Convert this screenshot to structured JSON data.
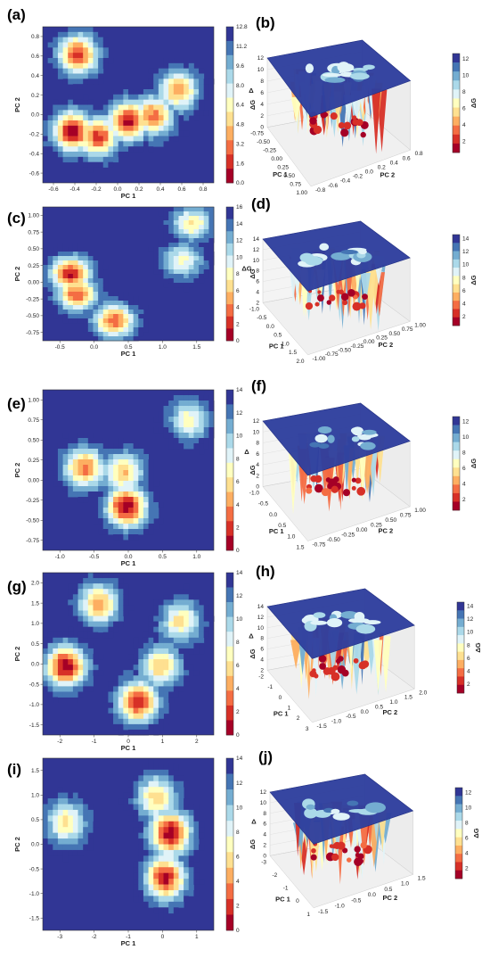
{
  "colors": {
    "scale": [
      "#a50026",
      "#d73027",
      "#f46d43",
      "#fdae61",
      "#fee090",
      "#ffffbf",
      "#e0f3f8",
      "#abd9e9",
      "#74add1",
      "#4575b4",
      "#313695"
    ],
    "plane": "#2f3f9e",
    "grid": "#dddddd"
  },
  "chart_data": [
    {
      "id": "a",
      "panel_label": "(a)",
      "type": "heatmap",
      "xlabel": "PC 1",
      "ylabel": "PC 2",
      "colorbar_label": "ΔG",
      "xticks": [
        "-0.6",
        "-0.4",
        "-0.2",
        "0.0",
        "0.2",
        "0.4",
        "0.6",
        "0.8"
      ],
      "yticks": [
        "0.8",
        "0.6",
        "0.4",
        "0.2",
        "0.0",
        "-0.2",
        "-0.4",
        "-0.6"
      ],
      "cbar_ticks": [
        "12.8",
        "11.2",
        "9.6",
        "8.0",
        "6.4",
        "4.8",
        "3.2",
        "1.6",
        "0.0"
      ],
      "xlim": [
        -0.75,
        0.95
      ],
      "ylim": [
        -0.7,
        0.82
      ],
      "vmax": 12.8,
      "basins": [
        {
          "x": -0.4,
          "y": 0.55,
          "depth": 11
        },
        {
          "x": -0.45,
          "y": -0.2,
          "depth": 12.5
        },
        {
          "x": -0.2,
          "y": -0.25,
          "depth": 11
        },
        {
          "x": 0.1,
          "y": -0.1,
          "depth": 12
        },
        {
          "x": 0.35,
          "y": -0.05,
          "depth": 10
        },
        {
          "x": 0.6,
          "y": 0.2,
          "depth": 9
        }
      ]
    },
    {
      "id": "b",
      "panel_label": "(b)",
      "type": "surface",
      "xlabel": "PC 1",
      "ylabel": "PC 2",
      "zlabel": "Δ",
      "colorbar_label": "ΔG",
      "xticks": [
        "-0.75",
        "-0.50",
        "-0.25",
        "0.00",
        "0.25",
        "0.50",
        "0.75",
        "1.00"
      ],
      "yticks": [
        "0.8",
        "0.6",
        "0.4",
        "0.2",
        "0.0",
        "-0.2",
        "-0.4",
        "-0.6",
        "-0.8"
      ],
      "zticks": [
        "12",
        "10",
        "8",
        "6",
        "4",
        "2",
        "0"
      ],
      "cbar_ticks": [
        "12",
        "10",
        "8",
        "6",
        "4",
        "2"
      ]
    },
    {
      "id": "c",
      "panel_label": "(c)",
      "type": "heatmap",
      "xlabel": "PC 1",
      "ylabel": "PC 2",
      "colorbar_label": "ΔG",
      "xticks": [
        "-0.5",
        "0.0",
        "0.5",
        "1.0",
        "1.5"
      ],
      "yticks": [
        "1.00",
        "0.75",
        "0.50",
        "0.25",
        "0.00",
        "-0.25",
        "-0.50",
        "-0.75"
      ],
      "cbar_ticks": [
        "16",
        "14",
        "12",
        "10",
        "8",
        "6",
        "4",
        "2",
        "0"
      ],
      "xlim": [
        -0.85,
        1.9
      ],
      "ylim": [
        -0.9,
        1.1
      ],
      "vmax": 16,
      "basins": [
        {
          "x": -0.4,
          "y": 0.1,
          "depth": 15
        },
        {
          "x": -0.3,
          "y": -0.2,
          "depth": 13
        },
        {
          "x": 0.3,
          "y": -0.6,
          "depth": 13
        },
        {
          "x": 1.55,
          "y": 0.85,
          "depth": 9
        },
        {
          "x": 1.4,
          "y": 0.3,
          "depth": 8
        }
      ]
    },
    {
      "id": "d",
      "panel_label": "(d)",
      "type": "surface",
      "xlabel": "PC 1",
      "ylabel": "PC 2",
      "zlabel": "ΔG",
      "colorbar_label": "ΔG",
      "xticks": [
        "-1.0",
        "-0.5",
        "0.0",
        "0.5",
        "1.0",
        "1.5",
        "2.0"
      ],
      "yticks": [
        "1.00",
        "0.75",
        "0.50",
        "0.25",
        "0.00",
        "-0.25",
        "-0.50",
        "-0.75",
        "-1.00"
      ],
      "zticks": [
        "14",
        "12",
        "10",
        "8",
        "6",
        "4",
        "2"
      ],
      "cbar_ticks": [
        "14",
        "12",
        "10",
        "8",
        "6",
        "4",
        "2"
      ]
    },
    {
      "id": "e",
      "panel_label": "(e)",
      "type": "heatmap",
      "xlabel": "PC 1",
      "ylabel": "PC 2",
      "colorbar_label": "ΔG",
      "xticks": [
        "-1.0",
        "-0.5",
        "0.0",
        "0.5",
        "1.0"
      ],
      "yticks": [
        "1.00",
        "0.75",
        "0.50",
        "0.25",
        "0.00",
        "-0.25",
        "-0.50",
        "-0.75"
      ],
      "cbar_ticks": [
        "14",
        "12",
        "10",
        "8",
        "6",
        "4",
        "2",
        "0"
      ],
      "xlim": [
        -1.15,
        1.3
      ],
      "ylim": [
        -0.8,
        1.05
      ],
      "vmax": 14,
      "basins": [
        {
          "x": -0.55,
          "y": 0.15,
          "depth": 11
        },
        {
          "x": 0.05,
          "y": -0.3,
          "depth": 14
        },
        {
          "x": 0.0,
          "y": 0.1,
          "depth": 9
        },
        {
          "x": 0.95,
          "y": 0.7,
          "depth": 7
        }
      ]
    },
    {
      "id": "f",
      "panel_label": "(f)",
      "type": "surface",
      "xlabel": "PC 1",
      "ylabel": "PC 2",
      "zlabel": "Δ",
      "colorbar_label": "ΔG",
      "xticks": [
        "-1.0",
        "-0.5",
        "0.0",
        "0.5",
        "1.0",
        "1.5"
      ],
      "yticks": [
        "1.00",
        "0.75",
        "0.50",
        "0.25",
        "0.00",
        "-0.25",
        "-0.50",
        "-0.75"
      ],
      "zticks": [
        "12",
        "10",
        "8",
        "6",
        "4",
        "2",
        "0"
      ],
      "cbar_ticks": [
        "12",
        "10",
        "8",
        "6",
        "4",
        "2"
      ]
    },
    {
      "id": "g",
      "panel_label": "(g)",
      "type": "heatmap",
      "xlabel": "PC 1",
      "ylabel": "PC 2",
      "colorbar_label": "ΔG",
      "xticks": [
        "-2",
        "-1",
        "0",
        "1",
        "2"
      ],
      "yticks": [
        "2.0",
        "1.5",
        "1.0",
        "0.5",
        "0.0",
        "-0.5",
        "-1.0",
        "-1.5"
      ],
      "cbar_ticks": [
        "14",
        "12",
        "10",
        "8",
        "6",
        "4",
        "2",
        "0"
      ],
      "xlim": [
        -2.4,
        2.8
      ],
      "ylim": [
        -1.55,
        2.1
      ],
      "vmax": 14,
      "basins": [
        {
          "x": -1.7,
          "y": 0.0,
          "depth": 14
        },
        {
          "x": -0.7,
          "y": 1.4,
          "depth": 10
        },
        {
          "x": 0.5,
          "y": -0.8,
          "depth": 13
        },
        {
          "x": 1.2,
          "y": 0.0,
          "depth": 9
        },
        {
          "x": 1.8,
          "y": 1.0,
          "depth": 8
        }
      ]
    },
    {
      "id": "h",
      "panel_label": "(h)",
      "type": "surface",
      "xlabel": "PC 1",
      "ylabel": "PC 2",
      "zlabel": "Δ",
      "colorbar_label": "ΔG",
      "xticks": [
        "-2",
        "-1",
        "0",
        "1",
        "2",
        "3"
      ],
      "yticks": [
        "2.0",
        "1.5",
        "1.0",
        "0.5",
        "0.0",
        "-0.5",
        "-1.0",
        "-1.5"
      ],
      "zticks": [
        "14",
        "12",
        "10",
        "8",
        "6",
        "4",
        "2"
      ],
      "cbar_ticks": [
        "14",
        "12",
        "10",
        "8",
        "6",
        "4",
        "2"
      ]
    },
    {
      "id": "i",
      "panel_label": "(i)",
      "type": "heatmap",
      "xlabel": "PC 1",
      "ylabel": "PC 2",
      "colorbar_label": "ΔG",
      "xticks": [
        "-3",
        "-2",
        "-1",
        "0",
        "1"
      ],
      "yticks": [
        "1.5",
        "1.0",
        "0.5",
        "0.0",
        "-0.5",
        "-1.0",
        "-1.5"
      ],
      "cbar_ticks": [
        "14",
        "12",
        "10",
        "8",
        "6",
        "4",
        "2",
        "0"
      ],
      "xlim": [
        -3.7,
        1.4
      ],
      "ylim": [
        -1.85,
        1.6
      ],
      "vmax": 14,
      "basins": [
        {
          "x": -3.0,
          "y": 0.3,
          "depth": 8
        },
        {
          "x": 0.1,
          "y": 0.1,
          "depth": 14
        },
        {
          "x": -0.05,
          "y": -0.8,
          "depth": 13
        },
        {
          "x": -0.3,
          "y": 0.8,
          "depth": 9
        }
      ]
    },
    {
      "id": "j",
      "panel_label": "(j)",
      "type": "surface",
      "xlabel": "PC 1",
      "ylabel": "PC 2",
      "zlabel": "Δ",
      "colorbar_label": "ΔG",
      "xticks": [
        "-3",
        "-2",
        "-1",
        "0",
        "1"
      ],
      "yticks": [
        "1.5",
        "1.0",
        "0.5",
        "0.0",
        "-0.5",
        "-1.0",
        "-1.5"
      ],
      "zticks": [
        "12",
        "10",
        "8",
        "6",
        "4",
        "2",
        "0"
      ],
      "cbar_ticks": [
        "12",
        "10",
        "8",
        "6",
        "4",
        "2"
      ]
    }
  ]
}
